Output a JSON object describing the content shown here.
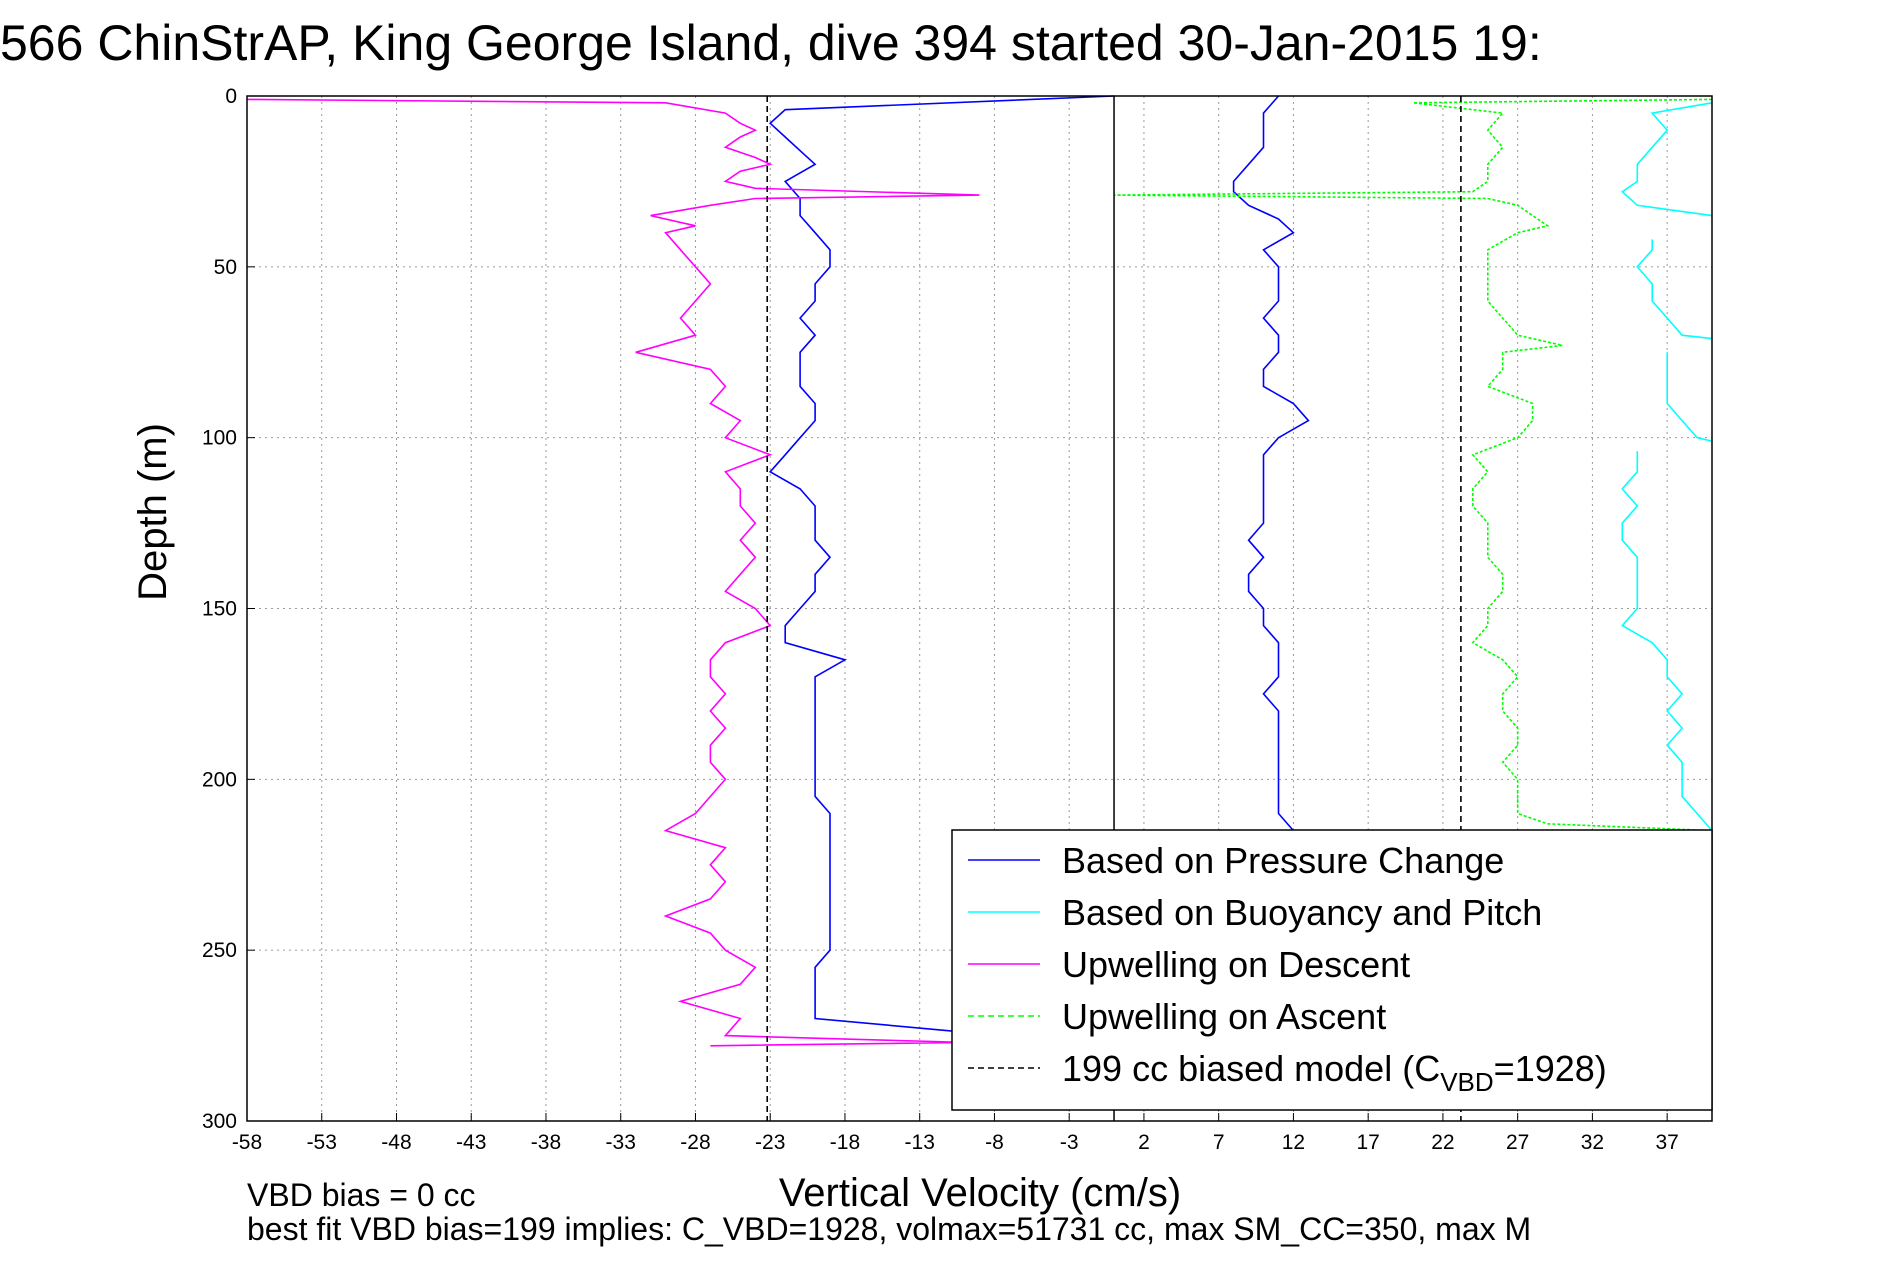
{
  "chart_data": {
    "type": "line",
    "title": "566 ChinStrAP, King George Island, dive 394 started 30-Jan-2015 19:",
    "xlabel": "Vertical Velocity (cm/s)",
    "ylabel": "Depth (m)",
    "xlim": [
      -58,
      40
    ],
    "ylim": [
      300,
      0
    ],
    "x_reversed_axis": false,
    "y_reversed": true,
    "grid": true,
    "xticks": [
      -58,
      -53,
      -48,
      -43,
      -38,
      -33,
      -28,
      -23,
      -18,
      -13,
      -8,
      -3,
      2,
      7,
      12,
      17,
      22,
      27,
      32,
      37
    ],
    "yticks": [
      0,
      50,
      100,
      150,
      200,
      250,
      300
    ],
    "legend_location": "lower-right",
    "series": [
      {
        "name": "Based on Pressure Change",
        "color": "#0000ff",
        "style": "solid",
        "segments": [
          {
            "depth": [
              0,
              4,
              8,
              12,
              16,
              20,
              25,
              30,
              35,
              40,
              45,
              50,
              55,
              60,
              65,
              70,
              75,
              80,
              85,
              90,
              95,
              100,
              105,
              110,
              115,
              120,
              125,
              130,
              135,
              140,
              145,
              150,
              155,
              160,
              165,
              170,
              175,
              180,
              185,
              190,
              195,
              200,
              205,
              210,
              215,
              220,
              225,
              230,
              235,
              240,
              245,
              250,
              255,
              260,
              265,
              270,
              274
            ],
            "velocity": [
              0,
              -22,
              -23,
              -22,
              -21,
              -20,
              -22,
              -21,
              -21,
              -20,
              -19,
              -19,
              -20,
              -20,
              -21,
              -20,
              -21,
              -21,
              -21,
              -20,
              -20,
              -21,
              -22,
              -23,
              -21,
              -20,
              -20,
              -20,
              -19,
              -20,
              -20,
              -21,
              -22,
              -22,
              -18,
              -20,
              -20,
              -20,
              -20,
              -20,
              -20,
              -20,
              -20,
              -19,
              -19,
              -19,
              -19,
              -19,
              -19,
              -19,
              -19,
              -19,
              -20,
              -20,
              -20,
              -20,
              -10
            ]
          }
        ]
      },
      {
        "name": "Based on Pressure Change",
        "color": "#0000ff",
        "style": "solid",
        "segments": [
          {
            "depth": [
              0,
              5,
              10,
              15,
              20,
              25,
              28,
              32,
              36,
              40,
              45,
              50,
              55,
              60,
              65,
              70,
              75,
              80,
              85,
              90,
              95,
              100,
              105,
              110,
              115,
              120,
              125,
              130,
              135,
              140,
              145,
              150,
              155,
              160,
              165,
              170,
              175,
              180,
              185,
              190,
              195,
              200,
              205,
              210,
              215
            ],
            "velocity": [
              11,
              10,
              10,
              10,
              9,
              8,
              8,
              9,
              11,
              12,
              10,
              11,
              11,
              11,
              10,
              11,
              11,
              10,
              10,
              12,
              13,
              11,
              10,
              10,
              10,
              10,
              10,
              9,
              10,
              9,
              9,
              10,
              10,
              11,
              11,
              11,
              10,
              11,
              11,
              11,
              11,
              11,
              11,
              11,
              12
            ]
          }
        ]
      },
      {
        "name": "Based on Buoyancy and Pitch",
        "color": "#00ffff",
        "style": "solid",
        "segments": [
          {
            "depth": [
              2,
              5,
              10,
              15,
              20,
              25,
              28,
              32,
              35
            ],
            "velocity": [
              40,
              36,
              37,
              36,
              35,
              35,
              34,
              35,
              40
            ]
          },
          {
            "depth": [
              42,
              45,
              50,
              55,
              60,
              65,
              70,
              71
            ],
            "velocity": [
              36,
              36,
              35,
              36,
              36,
              37,
              38,
              40
            ]
          },
          {
            "depth": [
              75,
              80,
              85,
              90,
              95,
              100,
              101
            ],
            "velocity": [
              37,
              37,
              37,
              37,
              38,
              39,
              40
            ]
          },
          {
            "depth": [
              104,
              110,
              115,
              120,
              125,
              130,
              135,
              140,
              145,
              150,
              155,
              160,
              165,
              170,
              175,
              180,
              185,
              190,
              195,
              200,
              205,
              210,
              215
            ],
            "velocity": [
              35,
              35,
              34,
              35,
              34,
              34,
              35,
              35,
              35,
              35,
              34,
              36,
              37,
              37,
              38,
              37,
              38,
              37,
              38,
              38,
              38,
              39,
              40
            ]
          }
        ]
      },
      {
        "name": "Upwelling on Descent",
        "color": "#ff00ff",
        "style": "solid",
        "segments": [
          {
            "depth": [
              1,
              2,
              5,
              8,
              10,
              12,
              15,
              18,
              20,
              22,
              25,
              27,
              29,
              30,
              32,
              35,
              38,
              40,
              45,
              50,
              55,
              60,
              65,
              70,
              75,
              80,
              85,
              90,
              95,
              100,
              105,
              110,
              115,
              120,
              125,
              130,
              135,
              140,
              145,
              150,
              155,
              160,
              165,
              170,
              175,
              180,
              185,
              190,
              195,
              200,
              205,
              210,
              215,
              220,
              225,
              230,
              235,
              240,
              245,
              250,
              255,
              260,
              265,
              270,
              275,
              277,
              278
            ],
            "velocity": [
              -58,
              -30,
              -26,
              -25,
              -24,
              -25,
              -26,
              -24,
              -23,
              -25,
              -26,
              -24,
              -9,
              -24,
              -27,
              -31,
              -28,
              -30,
              -29,
              -28,
              -27,
              -28,
              -29,
              -28,
              -32,
              -27,
              -26,
              -27,
              -25,
              -26,
              -23,
              -26,
              -25,
              -25,
              -24,
              -25,
              -24,
              -25,
              -26,
              -24,
              -23,
              -26,
              -27,
              -27,
              -26,
              -27,
              -26,
              -27,
              -27,
              -26,
              -27,
              -28,
              -30,
              -26,
              -27,
              -26,
              -27,
              -30,
              -27,
              -26,
              -24,
              -25,
              -29,
              -25,
              -26,
              -10,
              -27
            ]
          }
        ]
      },
      {
        "name": "Upwelling on Ascent",
        "color": "#00ff00",
        "style": "dashed",
        "segments": [
          {
            "depth": [
              1,
              2,
              5,
              10,
              15,
              20,
              25,
              28,
              29,
              30,
              32,
              35,
              38,
              40,
              45,
              50,
              55,
              60,
              65,
              70,
              73,
              75,
              80,
              85,
              90,
              95,
              100,
              105,
              110,
              115,
              120,
              125,
              130,
              135,
              140,
              145,
              150,
              155,
              160,
              165,
              170,
              175,
              180,
              185,
              190,
              195,
              200,
              205,
              210,
              213,
              215
            ],
            "velocity": [
              40,
              20,
              26,
              25,
              26,
              25,
              25,
              24,
              0,
              25,
              27,
              28,
              29,
              27,
              25,
              25,
              25,
              25,
              26,
              27,
              30,
              26,
              26,
              25,
              28,
              28,
              27,
              24,
              25,
              24,
              24,
              25,
              25,
              25,
              26,
              26,
              25,
              25,
              24,
              26,
              27,
              26,
              26,
              27,
              27,
              26,
              27,
              27,
              27,
              29,
              40
            ]
          }
        ]
      },
      {
        "name": "199 cc biased model (C_VBD=1928)",
        "color": "#000000",
        "style": "dashed",
        "segments": [
          {
            "depth": [
              0,
              300
            ],
            "velocity": [
              -23.2,
              -23.2
            ]
          },
          {
            "depth": [
              0,
              300
            ],
            "velocity": [
              23.2,
              23.2
            ]
          }
        ]
      }
    ],
    "legend": [
      {
        "label": "Based on Pressure Change",
        "color": "#0000ff",
        "style": "solid"
      },
      {
        "label": "Based on Buoyancy and Pitch",
        "color": "#00ffff",
        "style": "solid"
      },
      {
        "label": "Upwelling on Descent",
        "color": "#ff00ff",
        "style": "solid"
      },
      {
        "label": "Upwelling on Ascent",
        "color": "#00ff00",
        "style": "dashed"
      },
      {
        "label_main": "199 cc biased model (C",
        "label_sub": "VBD",
        "label_end": "=1928)",
        "color": "#000000",
        "style": "dashed"
      }
    ],
    "footnotes": [
      "VBD bias = 0 cc",
      "best fit VBD bias=199 implies: C_VBD=1928, volmax=51731 cc, max SM_CC=350, max M"
    ]
  }
}
